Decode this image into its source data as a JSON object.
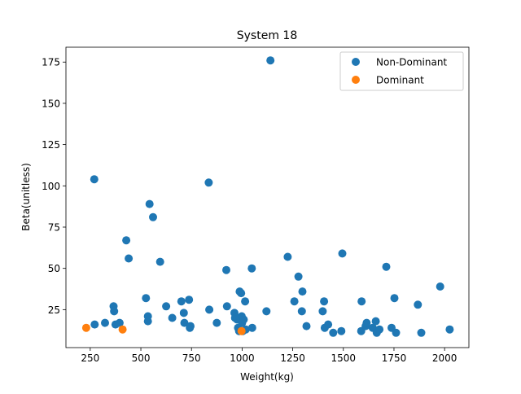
{
  "chart_data": {
    "type": "scatter",
    "title": "System 18",
    "xlabel": "Weight(kg)",
    "ylabel": "Beta(unitless)",
    "xlim": [
      130,
      2120
    ],
    "ylim": [
      2,
      184
    ],
    "xticks": [
      250,
      500,
      750,
      1000,
      1250,
      1500,
      1750,
      2000
    ],
    "yticks": [
      25,
      50,
      75,
      100,
      125,
      150,
      175
    ],
    "legend_position": "top-right",
    "grid": false,
    "series": [
      {
        "name": "Non-Dominant",
        "color": "#1f77b4",
        "points": [
          [
            270,
            104
          ],
          [
            272,
            16
          ],
          [
            323,
            17
          ],
          [
            365,
            27
          ],
          [
            368,
            24
          ],
          [
            375,
            16
          ],
          [
            395,
            17
          ],
          [
            428,
            67
          ],
          [
            440,
            56
          ],
          [
            525,
            32
          ],
          [
            535,
            21
          ],
          [
            535,
            18
          ],
          [
            543,
            89
          ],
          [
            560,
            81
          ],
          [
            595,
            54
          ],
          [
            625,
            27
          ],
          [
            655,
            20
          ],
          [
            700,
            30
          ],
          [
            712,
            23
          ],
          [
            715,
            17
          ],
          [
            738,
            31
          ],
          [
            742,
            14
          ],
          [
            745,
            15
          ],
          [
            835,
            102
          ],
          [
            838,
            25
          ],
          [
            875,
            17
          ],
          [
            922,
            49
          ],
          [
            925,
            27
          ],
          [
            962,
            23
          ],
          [
            965,
            20
          ],
          [
            975,
            19
          ],
          [
            980,
            14
          ],
          [
            985,
            12
          ],
          [
            988,
            36
          ],
          [
            990,
            20
          ],
          [
            995,
            35
          ],
          [
            998,
            21
          ],
          [
            1000,
            17
          ],
          [
            1003,
            12
          ],
          [
            1008,
            19
          ],
          [
            1015,
            30
          ],
          [
            1018,
            13
          ],
          [
            1048,
            50
          ],
          [
            1050,
            14
          ],
          [
            1120,
            24
          ],
          [
            1140,
            176
          ],
          [
            1225,
            57
          ],
          [
            1258,
            30
          ],
          [
            1278,
            45
          ],
          [
            1295,
            24
          ],
          [
            1298,
            36
          ],
          [
            1318,
            15
          ],
          [
            1398,
            24
          ],
          [
            1405,
            30
          ],
          [
            1408,
            14
          ],
          [
            1425,
            16
          ],
          [
            1450,
            11
          ],
          [
            1490,
            12
          ],
          [
            1495,
            59
          ],
          [
            1588,
            12
          ],
          [
            1590,
            30
          ],
          [
            1610,
            15
          ],
          [
            1615,
            17
          ],
          [
            1645,
            14
          ],
          [
            1660,
            18
          ],
          [
            1665,
            11
          ],
          [
            1678,
            13
          ],
          [
            1712,
            51
          ],
          [
            1738,
            14
          ],
          [
            1752,
            32
          ],
          [
            1760,
            11
          ],
          [
            1868,
            28
          ],
          [
            1885,
            11
          ],
          [
            1978,
            39
          ],
          [
            2025,
            13
          ]
        ]
      },
      {
        "name": "Dominant",
        "color": "#ff7f0e",
        "points": [
          [
            230,
            14
          ],
          [
            410,
            13
          ],
          [
            997,
            12
          ]
        ]
      }
    ]
  }
}
